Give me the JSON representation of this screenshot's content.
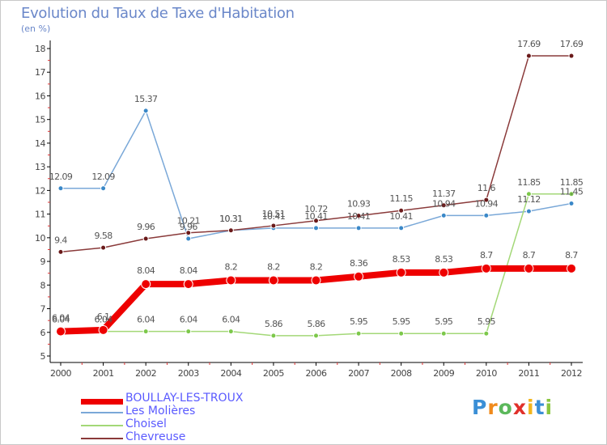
{
  "title": "Evolution du Taux de Taxe d'Habitation",
  "subtitle": "(en %)",
  "logo": {
    "text": "Proxiti",
    "letters": [
      "P",
      "r",
      "o",
      "x",
      "i",
      "t",
      "i"
    ],
    "colors": [
      "#3b8fd6",
      "#f08a1c",
      "#5bb85b",
      "#e0302a",
      "#f2b51d",
      "#3b8fd6",
      "#8ac640"
    ]
  },
  "chart_data": {
    "type": "line",
    "x": [
      "2000",
      "2001",
      "2002",
      "2003",
      "2004",
      "2005",
      "2006",
      "2007",
      "2008",
      "2009",
      "2010",
      "2011",
      "2012"
    ],
    "ylim": [
      5,
      18
    ],
    "yticks": [
      "5",
      "6",
      "7",
      "8",
      "9",
      "10",
      "11",
      "12",
      "13",
      "14",
      "15",
      "16",
      "17",
      "18"
    ],
    "grid": false,
    "series": [
      {
        "name": "Les Molières",
        "color": "#7aa8d8",
        "marker": "#3a88c8",
        "width": 1.5,
        "values": [
          12.09,
          12.09,
          15.37,
          9.96,
          10.31,
          10.41,
          10.41,
          10.41,
          10.41,
          10.94,
          10.94,
          11.12,
          11.45
        ],
        "labels": [
          "12.09",
          "12.09",
          "15.37",
          "9.96",
          "10.31",
          "10.41",
          "10.41",
          "10.41",
          "10.41",
          "10.94",
          "10.94",
          "11.12",
          "11.45"
        ]
      },
      {
        "name": "Choisel",
        "color": "#a3d877",
        "marker": "#7cc84a",
        "width": 1.5,
        "values": [
          6.04,
          6.04,
          6.04,
          6.04,
          6.04,
          5.86,
          5.86,
          5.95,
          5.95,
          5.95,
          5.95,
          11.85,
          11.85
        ],
        "labels": [
          "6.04",
          "6.04",
          "6.04",
          "6.04",
          "6.04",
          "5.86",
          "5.86",
          "5.95",
          "5.95",
          "5.95",
          "5.95",
          "11.85",
          "11.85"
        ]
      },
      {
        "name": "Chevreuse",
        "color": "#8a3a3a",
        "marker": "#6a1a1a",
        "width": 1.5,
        "values": [
          9.4,
          9.58,
          9.96,
          10.21,
          10.31,
          10.51,
          10.72,
          10.93,
          11.15,
          11.37,
          11.6,
          17.69,
          17.69
        ],
        "labels": [
          "9.4",
          "9.58",
          "9.96",
          "10.21",
          "10.31",
          "10.51",
          "10.72",
          "10.93",
          "11.15",
          "11.37",
          "11.6",
          "17.69",
          "17.69"
        ]
      },
      {
        "name": "BOULLAY-LES-TROUX",
        "color": "#ee0000",
        "marker": "#ee0000",
        "width": 8,
        "values": [
          6.04,
          6.1,
          8.04,
          8.04,
          8.2,
          8.2,
          8.2,
          8.36,
          8.53,
          8.53,
          8.7,
          8.7,
          8.7
        ],
        "labels": [
          "6.04",
          "6.1",
          "8.04",
          "8.04",
          "8.2",
          "8.2",
          "8.2",
          "8.36",
          "8.53",
          "8.53",
          "8.7",
          "8.7",
          "8.7"
        ]
      }
    ],
    "legend": [
      {
        "name": "BOULLAY-LES-TROUX",
        "color": "#ee0000"
      },
      {
        "name": "Les Molières",
        "color": "#7aa8d8"
      },
      {
        "name": "Choisel",
        "color": "#a3d877"
      },
      {
        "name": "Chevreuse",
        "color": "#8a3a3a"
      }
    ],
    "legend_position": "bottom-left"
  }
}
